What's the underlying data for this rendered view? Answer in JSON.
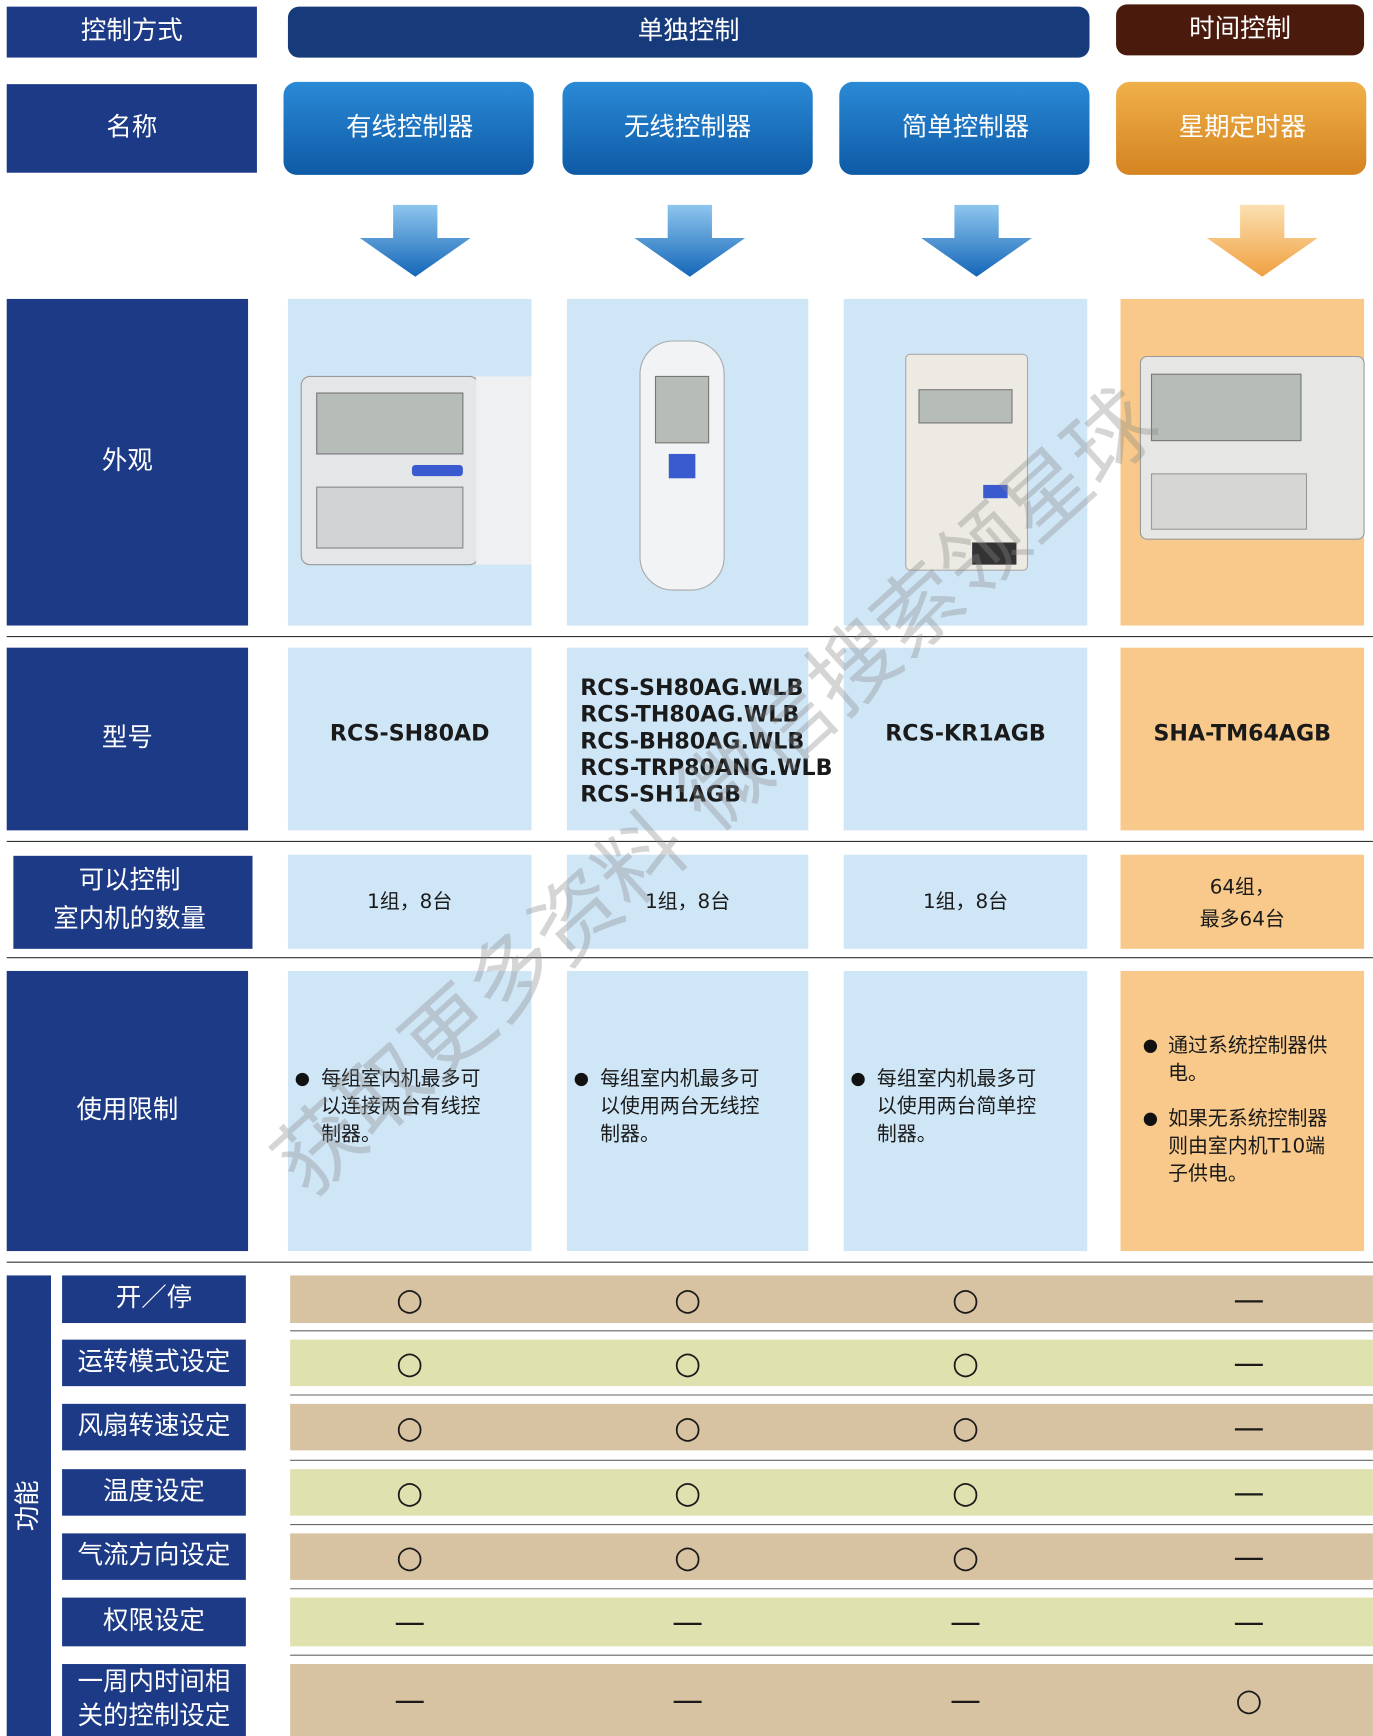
{
  "header": {
    "method_label": "控制方式",
    "individual": "单独控制",
    "timer": "时间控制"
  },
  "name_row": {
    "label": "名称",
    "products": [
      "有线控制器",
      "无线控制器",
      "简单控制器",
      "星期定时器"
    ]
  },
  "appearance_row": {
    "label": "外观"
  },
  "model_row": {
    "label": "型号",
    "models": [
      [
        "RCS-SH80AD"
      ],
      [
        "RCS-SH80AG.WLB",
        "RCS-TH80AG.WLB",
        "RCS-BH80AG.WLB",
        "RCS-TRP80ANG.WLB",
        "RCS-SH1AGB"
      ],
      [
        "RCS-KR1AGB"
      ],
      [
        "SHA-TM64AGB"
      ]
    ]
  },
  "count_row": {
    "label": [
      "可以控制",
      "室内机的数量"
    ],
    "values": [
      [
        "1组，8台"
      ],
      [
        "1组，8台"
      ],
      [
        "1组，8台"
      ],
      [
        "64组，",
        "最多64台"
      ]
    ]
  },
  "limit_row": {
    "label": "使用限制",
    "values": [
      [
        [
          "每组室内机最多可",
          "以连接两台有线控",
          "制器。"
        ]
      ],
      [
        [
          "每组室内机最多可",
          "以使用两台无线控",
          "制器。"
        ]
      ],
      [
        [
          "每组室内机最多可",
          "以使用两台简单控",
          "制器。"
        ]
      ],
      [
        [
          "通过系统控制器供",
          "电。"
        ],
        [
          "如果无系统控制器",
          "则由室内机T10端",
          "子供电。"
        ]
      ]
    ]
  },
  "functions": {
    "label": "功能",
    "items": [
      {
        "label": [
          "开／停"
        ],
        "marks": [
          "○",
          "○",
          "○",
          "—"
        ]
      },
      {
        "label": [
          "运转模式设定"
        ],
        "marks": [
          "○",
          "○",
          "○",
          "—"
        ]
      },
      {
        "label": [
          "风扇转速设定"
        ],
        "marks": [
          "○",
          "○",
          "○",
          "—"
        ]
      },
      {
        "label": [
          "温度设定"
        ],
        "marks": [
          "○",
          "○",
          "○",
          "—"
        ]
      },
      {
        "label": [
          "气流方向设定"
        ],
        "marks": [
          "○",
          "○",
          "○",
          "—"
        ]
      },
      {
        "label": [
          "权限设定"
        ],
        "marks": [
          "—",
          "—",
          "—",
          "—"
        ]
      },
      {
        "label": [
          "一周内时间相",
          "关的控制设定"
        ],
        "marks": [
          "—",
          "—",
          "—",
          "○"
        ]
      }
    ]
  },
  "watermark": "获取更多资料 微信搜索领星球"
}
